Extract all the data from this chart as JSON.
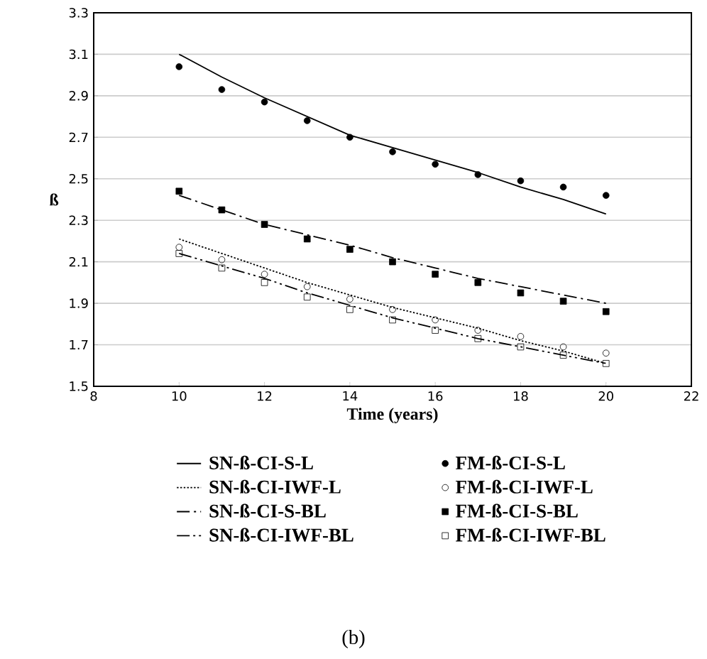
{
  "chart_data": {
    "type": "line",
    "xlabel": "Time (years)",
    "ylabel": "ß",
    "xlim": [
      8,
      22
    ],
    "xticks": [
      8,
      10,
      12,
      14,
      16,
      18,
      20,
      22
    ],
    "ylim": [
      1.5,
      3.3
    ],
    "yticks": [
      1.5,
      1.7,
      1.9,
      2.1,
      2.3,
      2.5,
      2.7,
      2.9,
      3.1,
      3.3
    ],
    "grid": "y",
    "legend": "bottom",
    "annotations": [
      "(b)"
    ],
    "x": [
      10,
      11,
      12,
      13,
      14,
      15,
      16,
      17,
      18,
      19,
      20
    ],
    "series": [
      {
        "name": "SN-ß-CI-S-L",
        "color": "#000000",
        "marker": "none",
        "line_style": "solid",
        "values": [
          3.1,
          2.99,
          2.89,
          2.8,
          2.71,
          2.65,
          2.59,
          2.53,
          2.46,
          2.4,
          2.33
        ]
      },
      {
        "name": "FM-ß-CI-S-L",
        "type": "scatter",
        "color": "#000000",
        "marker": "circle",
        "values": [
          3.04,
          2.93,
          2.87,
          2.78,
          2.7,
          2.63,
          2.57,
          2.52,
          2.49,
          2.46,
          2.42
        ]
      },
      {
        "name": "SN-ß-CI-IWF-L",
        "color": "#000000",
        "marker": "none",
        "line_style": "dotted",
        "values": [
          2.21,
          2.14,
          2.07,
          2.0,
          1.94,
          1.88,
          1.83,
          1.78,
          1.72,
          1.67,
          1.61
        ]
      },
      {
        "name": "FM-ß-CI-IWF-L",
        "type": "scatter",
        "color": "#000000",
        "marker": "circle_open",
        "values": [
          2.17,
          2.11,
          2.04,
          1.98,
          1.92,
          1.87,
          1.82,
          1.77,
          1.74,
          1.69,
          1.66
        ]
      },
      {
        "name": "SN-ß-CI-S-BL",
        "color": "#000000",
        "marker": "none",
        "line_style": "dashdot",
        "values": [
          2.42,
          2.35,
          2.28,
          2.23,
          2.18,
          2.12,
          2.07,
          2.02,
          1.98,
          1.94,
          1.9
        ]
      },
      {
        "name": "FM-ß-CI-S-BL",
        "type": "scatter",
        "color": "#000000",
        "marker": "square",
        "values": [
          2.44,
          2.35,
          2.28,
          2.21,
          2.16,
          2.1,
          2.04,
          2.0,
          1.95,
          1.91,
          1.86
        ]
      },
      {
        "name": "SN-ß-CI-IWF-BL",
        "color": "#000000",
        "marker": "none",
        "line_style": "dashdotdot",
        "values": [
          2.14,
          2.08,
          2.02,
          1.95,
          1.89,
          1.83,
          1.78,
          1.73,
          1.69,
          1.65,
          1.61
        ]
      },
      {
        "name": "FM-ß-CI-IWF-BL",
        "type": "scatter",
        "color": "#000000",
        "marker": "square_open",
        "values": [
          2.14,
          2.07,
          2.0,
          1.93,
          1.87,
          1.82,
          1.77,
          1.73,
          1.69,
          1.65,
          1.61
        ]
      }
    ]
  }
}
